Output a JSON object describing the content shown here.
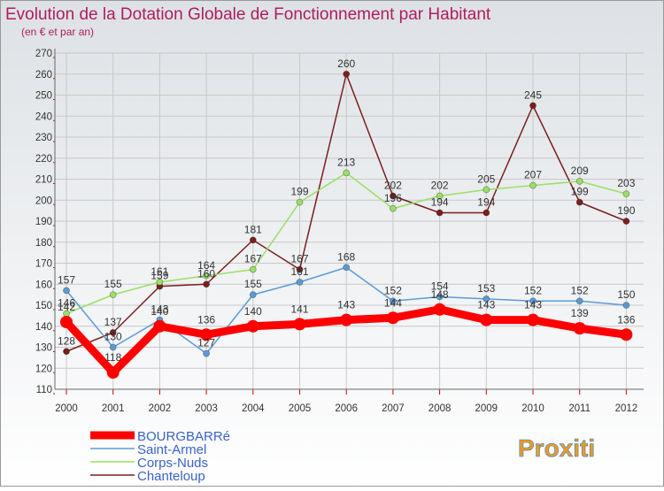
{
  "chart_data": {
    "type": "line",
    "title": "Evolution de la Dotation Globale de Fonctionnement par Habitant",
    "subtitle": "(en € et par an)",
    "xlabel": "",
    "ylabel": "",
    "categories": [
      "2000",
      "2001",
      "2002",
      "2003",
      "2004",
      "2005",
      "2006",
      "2007",
      "2008",
      "2009",
      "2010",
      "2011",
      "2012"
    ],
    "yticks": [
      110,
      120,
      130,
      140,
      150,
      160,
      170,
      180,
      190,
      200,
      210,
      220,
      230,
      240,
      250,
      260,
      270
    ],
    "ylim": [
      110,
      270
    ],
    "grid": true,
    "legend_position": "bottom-left",
    "series": [
      {
        "name": "BOURGBARRé",
        "color": "#ff0000",
        "values": [
          142,
          118,
          140,
          136,
          140,
          141,
          143,
          144,
          148,
          143,
          143,
          139,
          136
        ]
      },
      {
        "name": "Saint-Armel",
        "color": "#5b9bd5",
        "values": [
          157,
          130,
          143,
          127,
          155,
          161,
          168,
          152,
          154,
          153,
          152,
          152,
          150
        ]
      },
      {
        "name": "Corps-Nuds",
        "color": "#99e066",
        "values": [
          146,
          155,
          161,
          164,
          167,
          199,
          213,
          196,
          202,
          205,
          207,
          209,
          203
        ]
      },
      {
        "name": "Chanteloup",
        "color": "#7a1f1f",
        "values": [
          128,
          137,
          159,
          160,
          181,
          167,
          260,
          202,
          194,
          194,
          245,
          199,
          190
        ]
      }
    ]
  },
  "logo": {
    "text": "Proxiti"
  },
  "colors": {
    "title": "#b01c5e",
    "background_top": "#dce0e4",
    "background_bottom": "#ffffff",
    "grid": "#c8c8c8"
  }
}
